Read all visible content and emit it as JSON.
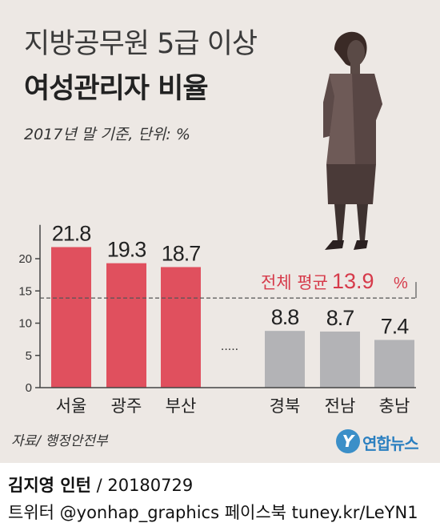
{
  "header": {
    "title_line1": "지방공무원 5급 이상",
    "title_line2": "여성관리자 비율",
    "subtitle": "2017년 말 기준, 단위: %"
  },
  "chart_data": {
    "type": "bar",
    "title": "지방공무원 5급 이상 여성관리자 비율",
    "subtitle": "2017년 말 기준, 단위: %",
    "categories": [
      "서울",
      "광주",
      "부산",
      "경북",
      "전남",
      "충남"
    ],
    "values": [
      21.8,
      19.3,
      18.7,
      8.8,
      8.7,
      7.4
    ],
    "value_labels": [
      "21.8",
      "19.3",
      "18.7",
      "8.8",
      "8.7",
      "7.4"
    ],
    "y_ticks": [
      "0",
      "5",
      "10",
      "15",
      "20"
    ],
    "ylim": [
      0,
      25
    ],
    "gap_marker": ".....",
    "average": {
      "label": "전체 평균",
      "value": 13.9,
      "value_text": "13.9",
      "unit": "%"
    },
    "colors": {
      "top": "#e0505e",
      "bottom": "#b3b3b6",
      "average_text": "#d63a4a",
      "axis": "#444444"
    },
    "grid": false
  },
  "source": "자료/ 행정안전부",
  "logo": {
    "mark": "Y",
    "text": "연합뉴스"
  },
  "footer": {
    "author": "김지영 인턴",
    "date": " / 20180729",
    "social": "트위터 @yonhap_graphics  페이스북 tuney.kr/LeYN1"
  }
}
